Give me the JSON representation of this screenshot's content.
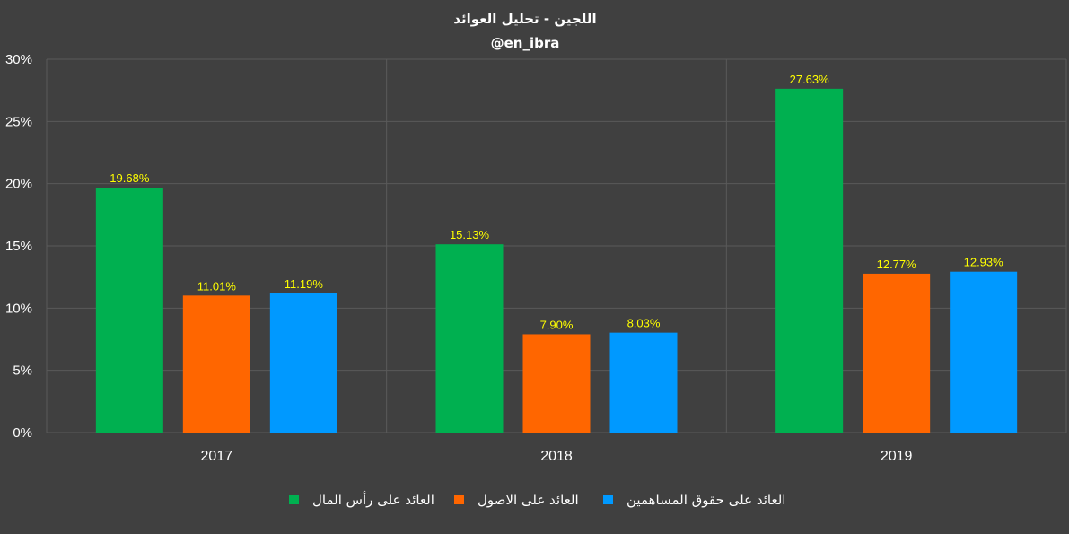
{
  "chart_data": {
    "type": "bar",
    "title": "اللجين - تحليل العوائد",
    "subtitle": "@en_ibra",
    "categories": [
      "2017",
      "2018",
      "2019"
    ],
    "series": [
      {
        "name": "العائد على رأس المال",
        "values": [
          19.68,
          15.13,
          27.63
        ],
        "labels": [
          "19.68%",
          "15.13%",
          "27.63%"
        ],
        "color": "#00b050"
      },
      {
        "name": "العائد على الاصول",
        "values": [
          11.01,
          7.9,
          12.77
        ],
        "labels": [
          "11.01%",
          "7.90%",
          "12.77%"
        ],
        "color": "#ff6600"
      },
      {
        "name": "العائد على حقوق المساهمين",
        "values": [
          11.19,
          8.03,
          12.93
        ],
        "labels": [
          "11.19%",
          "8.03%",
          "12.93%"
        ],
        "color": "#0099ff"
      }
    ],
    "ylim": [
      0,
      30
    ],
    "yticks": [
      "0%",
      "5%",
      "10%",
      "15%",
      "20%",
      "25%",
      "30%"
    ],
    "grid": true,
    "legend_position": "bottom",
    "value_label_color": "#ffff00",
    "background_color": "#404040"
  }
}
